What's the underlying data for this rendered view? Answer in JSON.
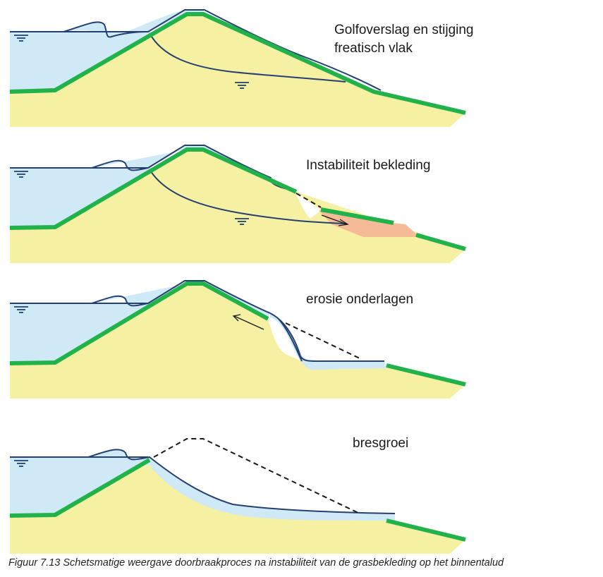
{
  "panels": [
    {
      "label_lines": [
        "Golfoverslag en stijging",
        "freatisch vlak"
      ]
    },
    {
      "label_lines": [
        "Instabiliteit bekleding"
      ]
    },
    {
      "label_lines": [
        "erosie onderlagen"
      ]
    },
    {
      "label_lines": [
        "bresgroei"
      ]
    }
  ],
  "caption": "Figuur 7.13 Schetsmatige weergave doorbraakproces na instabiliteit van de grasbekleding op het binnentalud",
  "colors": {
    "sand": "#f6f0a3",
    "water": "#cfe9f7",
    "grass": "#21b24b",
    "water_line": "#24406f",
    "slid_soil": "#f5bb96"
  },
  "icons": [
    "water-level-symbol",
    "phreatic-level-symbol",
    "flow-arrow"
  ]
}
